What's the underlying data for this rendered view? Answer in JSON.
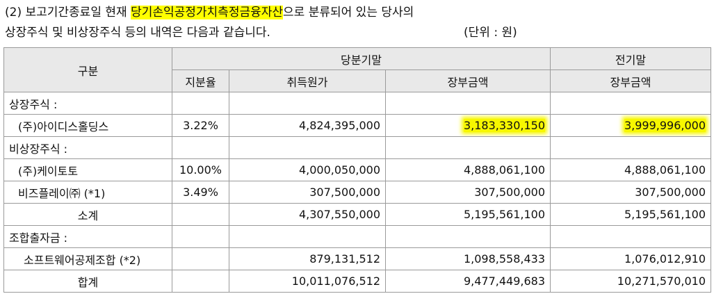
{
  "intro": {
    "line1_prefix": "(2) 보고기간종료일 현재 ",
    "line1_highlight": "당기손익공정가치측정금융자산",
    "line1_suffix": "으로 분류되어 있는 당사의",
    "line2": "상장주식 및 비상장주식 등의 내역은 다음과 같습니다.",
    "unit": "(단위 : 원)"
  },
  "table": {
    "header": {
      "category": "구분",
      "current_period": "당분기말",
      "prior_period": "전기말",
      "share_ratio": "지분율",
      "acquisition_cost": "취득원가",
      "book_value_current": "장부금액",
      "book_value_prior": "장부금액"
    },
    "rows": [
      {
        "label": "상장주식 :",
        "ratio": "",
        "cost": "",
        "book_current": "",
        "book_prior": ""
      },
      {
        "label": "(주)아이디스홀딩스",
        "ratio": "3.22%",
        "cost": "4,824,395,000",
        "book_current": "3,183,330,150",
        "book_prior": "3,999,996,000"
      },
      {
        "label": "비상장주식 :",
        "ratio": "",
        "cost": "",
        "book_current": "",
        "book_prior": ""
      },
      {
        "label": "(주)케이토토",
        "ratio": "10.00%",
        "cost": "4,000,050,000",
        "book_current": "4,888,061,100",
        "book_prior": "4,888,061,100"
      },
      {
        "label": "비즈플레이㈜ (*1)",
        "ratio": "3.49%",
        "cost": "307,500,000",
        "book_current": "307,500,000",
        "book_prior": "307,500,000"
      },
      {
        "label": "소계",
        "ratio": "",
        "cost": "4,307,550,000",
        "book_current": "5,195,561,100",
        "book_prior": "5,195,561,100"
      },
      {
        "label": "조합출자금 :",
        "ratio": "",
        "cost": "",
        "book_current": "",
        "book_prior": ""
      },
      {
        "label": "소프트웨어공제조합 (*2)",
        "ratio": "",
        "cost": "879,131,512",
        "book_current": "1,098,558,433",
        "book_prior": "1,076,012,910"
      },
      {
        "label": "합계",
        "ratio": "",
        "cost": "10,011,076,512",
        "book_current": "9,477,449,683",
        "book_prior": "10,271,570,010"
      }
    ]
  },
  "colors": {
    "highlight": "#ffff00",
    "header_bg": "#e9e9e9",
    "border": "#9a9a9a"
  }
}
